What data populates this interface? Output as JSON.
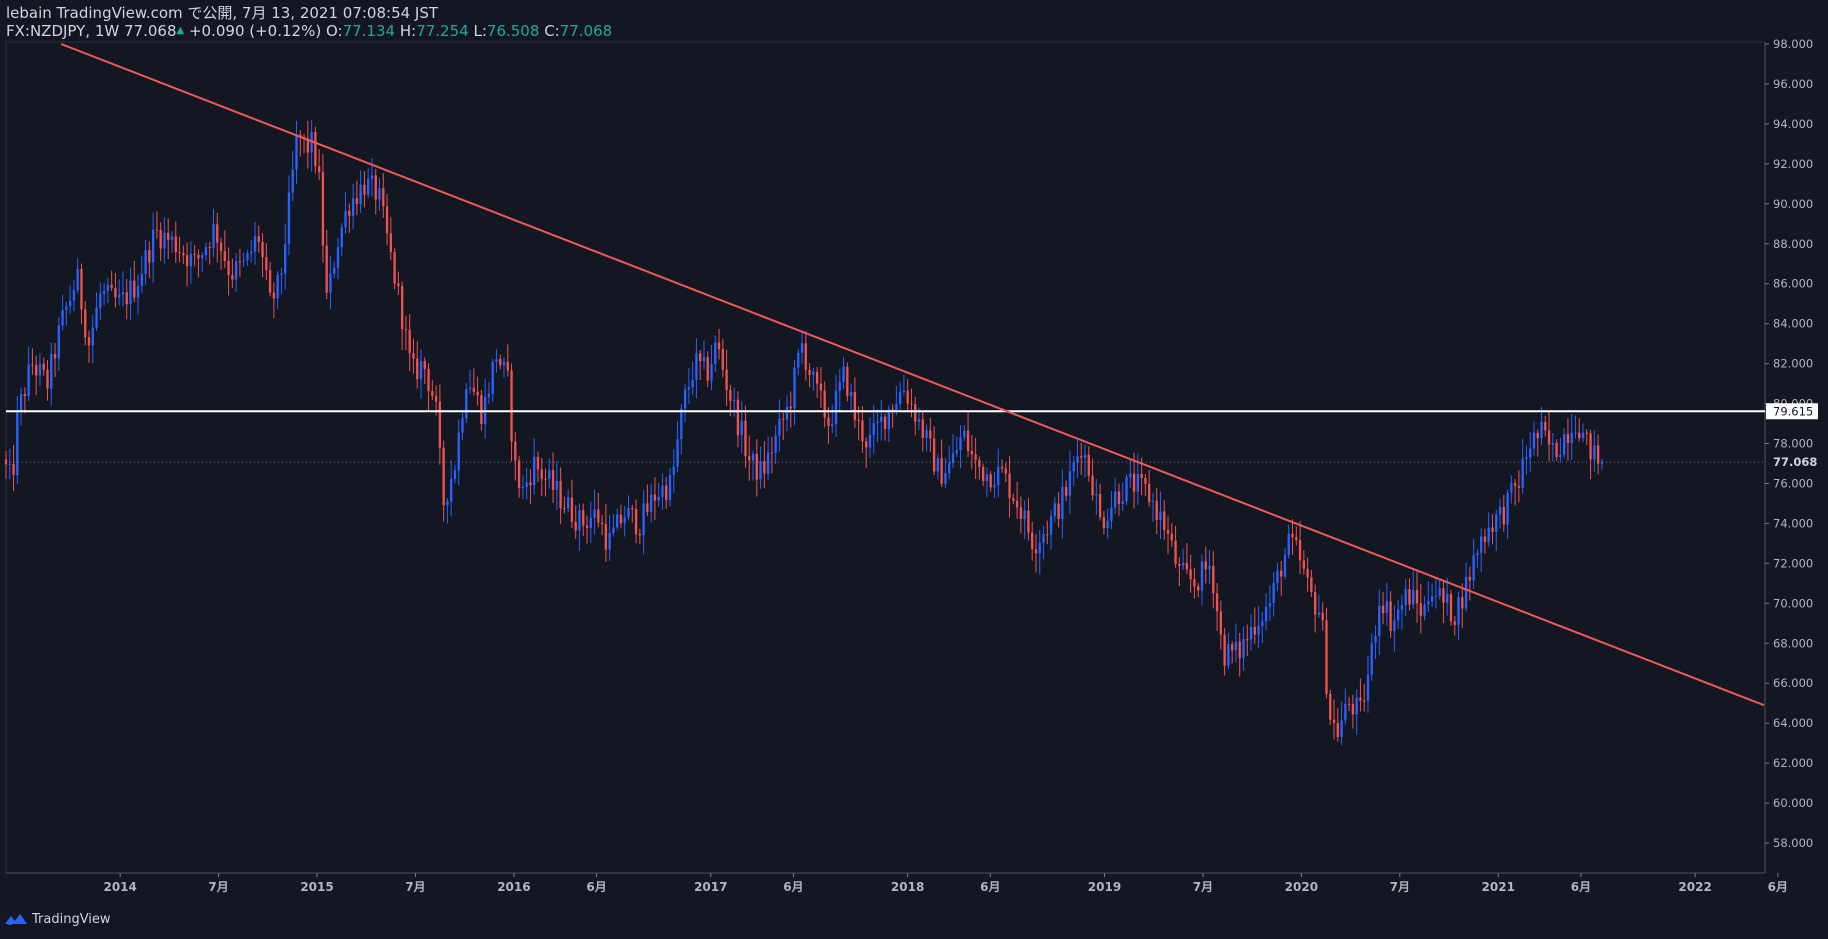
{
  "header": {
    "line1": "lebain TradingView.com で公開, 7月 13, 2021 07:08:54 JST",
    "symbol": "FX:NZDJPY, 1W",
    "last": "77.068",
    "change": "+0.090 (+0.12%)",
    "o_label": "O:",
    "o_value": "77.134",
    "h_label": "H:",
    "h_value": "77.254",
    "l_label": "L:",
    "l_value": "76.508",
    "c_label": "C:",
    "c_value": "77.068"
  },
  "footer": {
    "brand": "TradingView"
  },
  "colors": {
    "background": "#131722",
    "up": "#2962ff",
    "down": "#ef5350",
    "trendline": "#f05a5a",
    "hline": "#ffffff",
    "text": "#d1d4dc"
  },
  "chart_data": {
    "type": "candlestick",
    "symbol": "FX:NZDJPY",
    "interval": "1W",
    "y_axis": {
      "min": 56.5,
      "max": 98,
      "ticks": [
        "58.000",
        "60.000",
        "62.000",
        "64.000",
        "66.000",
        "68.000",
        "70.000",
        "72.000",
        "74.000",
        "76.000",
        "78.000",
        "80.000",
        "82.000",
        "84.000",
        "86.000",
        "88.000",
        "90.000",
        "92.000",
        "94.000",
        "96.000",
        "98.000"
      ],
      "position": "right"
    },
    "x_axis": {
      "start": 2013.42,
      "end": 2022.35,
      "ticks": [
        {
          "t": 2014.0,
          "label": "2014"
        },
        {
          "t": 2014.5,
          "label": "7月"
        },
        {
          "t": 2015.0,
          "label": "2015"
        },
        {
          "t": 2015.5,
          "label": "7月"
        },
        {
          "t": 2016.0,
          "label": "2016"
        },
        {
          "t": 2016.42,
          "label": "6月"
        },
        {
          "t": 2017.0,
          "label": "2017"
        },
        {
          "t": 2017.42,
          "label": "6月"
        },
        {
          "t": 2018.0,
          "label": "2018"
        },
        {
          "t": 2018.42,
          "label": "6月"
        },
        {
          "t": 2019.0,
          "label": "2019"
        },
        {
          "t": 2019.5,
          "label": "7月"
        },
        {
          "t": 2020.0,
          "label": "2020"
        },
        {
          "t": 2020.5,
          "label": "7月"
        },
        {
          "t": 2021.0,
          "label": "2021"
        },
        {
          "t": 2021.42,
          "label": "6月"
        },
        {
          "t": 2022.0,
          "label": "2022"
        },
        {
          "t": 2022.42,
          "label": "6月"
        }
      ]
    },
    "price_anchors": [
      [
        2013.42,
        77.2
      ],
      [
        2013.47,
        76.0
      ],
      [
        2013.5,
        79.5
      ],
      [
        2013.57,
        82.0
      ],
      [
        2013.65,
        81.0
      ],
      [
        2013.72,
        84.0
      ],
      [
        2013.8,
        86.3
      ],
      [
        2013.86,
        83.0
      ],
      [
        2013.92,
        85.5
      ],
      [
        2014.02,
        85.0
      ],
      [
        2014.1,
        86.0
      ],
      [
        2014.2,
        88.6
      ],
      [
        2014.3,
        88.0
      ],
      [
        2014.4,
        87.0
      ],
      [
        2014.5,
        88.8
      ],
      [
        2014.58,
        86.5
      ],
      [
        2014.66,
        87.0
      ],
      [
        2014.72,
        88.5
      ],
      [
        2014.78,
        85.0
      ],
      [
        2014.83,
        86.0
      ],
      [
        2014.92,
        93.5
      ],
      [
        2014.96,
        92.8
      ],
      [
        2015.0,
        93.0
      ],
      [
        2015.03,
        91.0
      ],
      [
        2015.07,
        85.0
      ],
      [
        2015.12,
        88.0
      ],
      [
        2015.18,
        90.0
      ],
      [
        2015.26,
        91.0
      ],
      [
        2015.33,
        90.5
      ],
      [
        2015.38,
        88.0
      ],
      [
        2015.45,
        84.5
      ],
      [
        2015.5,
        81.5
      ],
      [
        2015.56,
        82.0
      ],
      [
        2015.62,
        80.0
      ],
      [
        2015.66,
        75.0
      ],
      [
        2015.72,
        77.0
      ],
      [
        2015.78,
        81.5
      ],
      [
        2015.86,
        79.5
      ],
      [
        2015.93,
        82.5
      ],
      [
        2015.99,
        81.0
      ],
      [
        2016.02,
        77.0
      ],
      [
        2016.06,
        75.5
      ],
      [
        2016.12,
        77.0
      ],
      [
        2016.2,
        76.0
      ],
      [
        2016.28,
        75.0
      ],
      [
        2016.36,
        74.0
      ],
      [
        2016.44,
        74.5
      ],
      [
        2016.5,
        73.0
      ],
      [
        2016.58,
        74.5
      ],
      [
        2016.66,
        74.0
      ],
      [
        2016.74,
        75.5
      ],
      [
        2016.82,
        76.0
      ],
      [
        2016.88,
        80.0
      ],
      [
        2016.94,
        82.0
      ],
      [
        2017.0,
        81.5
      ],
      [
        2017.05,
        83.0
      ],
      [
        2017.1,
        81.0
      ],
      [
        2017.16,
        79.0
      ],
      [
        2017.22,
        77.0
      ],
      [
        2017.28,
        76.5
      ],
      [
        2017.34,
        78.0
      ],
      [
        2017.42,
        80.0
      ],
      [
        2017.48,
        83.0
      ],
      [
        2017.54,
        81.0
      ],
      [
        2017.62,
        79.0
      ],
      [
        2017.7,
        81.5
      ],
      [
        2017.76,
        79.0
      ],
      [
        2017.82,
        78.0
      ],
      [
        2017.88,
        79.0
      ],
      [
        2017.94,
        80.0
      ],
      [
        2018.0,
        80.8
      ],
      [
        2018.06,
        79.5
      ],
      [
        2018.12,
        78.0
      ],
      [
        2018.18,
        76.5
      ],
      [
        2018.24,
        77.0
      ],
      [
        2018.3,
        78.5
      ],
      [
        2018.36,
        77.0
      ],
      [
        2018.42,
        76.5
      ],
      [
        2018.5,
        76.5
      ],
      [
        2018.58,
        75.0
      ],
      [
        2018.66,
        73.0
      ],
      [
        2018.74,
        74.0
      ],
      [
        2018.82,
        75.5
      ],
      [
        2018.9,
        78.0
      ],
      [
        2018.96,
        76.0
      ],
      [
        2019.0,
        74.0
      ],
      [
        2019.08,
        75.5
      ],
      [
        2019.16,
        76.0
      ],
      [
        2019.24,
        75.5
      ],
      [
        2019.32,
        74.0
      ],
      [
        2019.4,
        71.5
      ],
      [
        2019.48,
        71.0
      ],
      [
        2019.56,
        72.0
      ],
      [
        2019.62,
        67.5
      ],
      [
        2019.7,
        67.5
      ],
      [
        2019.78,
        69.0
      ],
      [
        2019.86,
        70.0
      ],
      [
        2019.92,
        72.0
      ],
      [
        2019.96,
        73.0
      ],
      [
        2020.0,
        72.5
      ],
      [
        2020.06,
        70.5
      ],
      [
        2020.12,
        69.5
      ],
      [
        2020.16,
        64.5
      ],
      [
        2020.2,
        63.5
      ],
      [
        2020.26,
        65.0
      ],
      [
        2020.32,
        64.5
      ],
      [
        2020.36,
        66.5
      ],
      [
        2020.42,
        70.5
      ],
      [
        2020.48,
        69.0
      ],
      [
        2020.56,
        70.5
      ],
      [
        2020.64,
        69.5
      ],
      [
        2020.68,
        71.0
      ],
      [
        2020.74,
        70.0
      ],
      [
        2020.8,
        69.5
      ],
      [
        2020.86,
        71.0
      ],
      [
        2020.92,
        73.0
      ],
      [
        2020.98,
        74.0
      ],
      [
        2021.04,
        74.5
      ],
      [
        2021.12,
        76.0
      ],
      [
        2021.18,
        78.0
      ],
      [
        2021.24,
        78.5
      ],
      [
        2021.3,
        77.5
      ],
      [
        2021.36,
        78.5
      ],
      [
        2021.42,
        79.3
      ],
      [
        2021.46,
        78.0
      ],
      [
        2021.5,
        77.5
      ],
      [
        2021.53,
        77.068
      ]
    ],
    "trendline": {
      "t1": 2013.7,
      "p1": 98.0,
      "t2": 2022.35,
      "p2": 64.9,
      "color": "#f05a5a"
    },
    "horizontal_line": {
      "price": 79.615,
      "label": "79.615",
      "color": "#ffffff"
    },
    "last_price": {
      "price": 77.068,
      "label": "77.068"
    }
  }
}
